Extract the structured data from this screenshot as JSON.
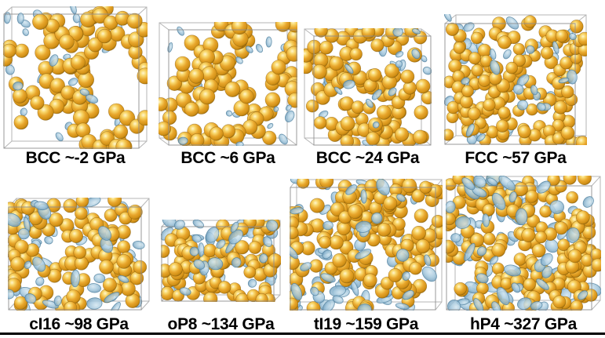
{
  "figure": {
    "description": "Simulation snapshots of crystal phases with atoms and electron-localization isosurfaces at increasing pressure",
    "colors": {
      "background": "#ffffff",
      "atom_base": "#E8A62C",
      "atom_highlight": "#FFF6CF",
      "atom_rim": "#9A6A0E",
      "atom_outline": "#7A5408",
      "isosurface_fill": "#9FC4DA",
      "isosurface_light": "#D3E6F0",
      "isosurface_edge": "#4F7F9D",
      "box_edge": "#8E8E8E",
      "label_color": "#000000",
      "bottom_rule": "#000000"
    },
    "panels": [
      {
        "phase": "BCC",
        "pressure": "~-2 GPa",
        "label": "BCC ~-2 GPa",
        "atoms": 100,
        "blobs": 22,
        "atom_radius": 9.5,
        "blob_scale": 0.8,
        "chain": 0.5,
        "seed": 11
      },
      {
        "phase": "BCC",
        "pressure": "~6 GPa",
        "label": "BCC ~6 GPa",
        "atoms": 96,
        "blobs": 20,
        "atom_radius": 9.3,
        "blob_scale": 0.8,
        "chain": 0.5,
        "seed": 23
      },
      {
        "phase": "BCC",
        "pressure": "~24 GPa",
        "label": "BCC ~24 GPa",
        "atoms": 106,
        "blobs": 32,
        "atom_radius": 8.6,
        "blob_scale": 0.9,
        "chain": 0.45,
        "seed": 37
      },
      {
        "phase": "FCC",
        "pressure": "~57 GPa",
        "label": "FCC ~57 GPa",
        "atoms": 150,
        "blobs": 48,
        "atom_radius": 8.0,
        "blob_scale": 1.0,
        "chain": 0.4,
        "seed": 41
      },
      {
        "phase": "cI16",
        "pressure": "~98 GPa",
        "label": "cI16 ~98 GPa",
        "atoms": 112,
        "blobs": 55,
        "atom_radius": 8.6,
        "blob_scale": 1.15,
        "chain": 0.35,
        "seed": 53
      },
      {
        "phase": "oP8",
        "pressure": "~134 GPa",
        "label": "oP8 ~134 GPa",
        "atoms": 82,
        "blobs": 48,
        "atom_radius": 8.2,
        "blob_scale": 1.1,
        "chain": 0.35,
        "seed": 67
      },
      {
        "phase": "tI19",
        "pressure": "~159 GPa",
        "label": "tI19 ~159 GPa",
        "atoms": 168,
        "blobs": 76,
        "atom_radius": 8.5,
        "blob_scale": 1.15,
        "chain": 0.35,
        "seed": 79
      },
      {
        "phase": "hP4",
        "pressure": "~327 GPa",
        "label": "hP4 ~327 GPa",
        "atoms": 195,
        "blobs": 96,
        "atom_radius": 8.1,
        "blob_scale": 1.25,
        "chain": 0.3,
        "seed": 97
      }
    ]
  }
}
